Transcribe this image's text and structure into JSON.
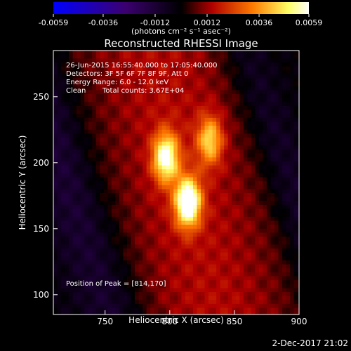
{
  "chart_data": {
    "type": "heatmap",
    "title": "Reconstructed RHESSI Image",
    "xlabel": "Heliocentric X (arcsec)",
    "ylabel": "Heliocentric Y (arcsec)",
    "xlim": [
      710,
      900
    ],
    "ylim": [
      85,
      285
    ],
    "x_ticks": [
      750,
      800,
      850,
      900
    ],
    "y_ticks": [
      100,
      150,
      200,
      250
    ],
    "colorbar": {
      "min": -0.0059,
      "max": 0.0059,
      "ticks": [
        "-0.0059",
        "-0.0036",
        "-0.0012",
        "0.0012",
        "0.0036",
        "0.0059"
      ],
      "unit_label": "(photons cm⁻² s⁻¹ asec⁻²)",
      "colors": [
        "#0000ff",
        "#3b0070",
        "#000000",
        "#b00000",
        "#ff7a00",
        "#ffff66",
        "#ffffff"
      ]
    },
    "annotations": {
      "time_range": "26-Jun-2015 16:55:40.000 to 17:05:40.000",
      "detectors": "Detectors: 3F 5F 6F 7F 8F 9F, Att 0",
      "energy_range": "Energy Range: 6.0 - 12.0 keV",
      "method": "Clean",
      "total_counts": "Total counts: 3.67E+04",
      "peak": "Position of Peak = [814,170]"
    },
    "sources": [
      {
        "x": 814,
        "y": 170,
        "value": 0.0059
      },
      {
        "x": 797,
        "y": 204,
        "value": 0.0049
      },
      {
        "x": 831,
        "y": 217,
        "value": 0.0034
      }
    ],
    "peak_position": [
      814,
      170
    ],
    "timestamp": "2-Dec-2017 21:02"
  }
}
